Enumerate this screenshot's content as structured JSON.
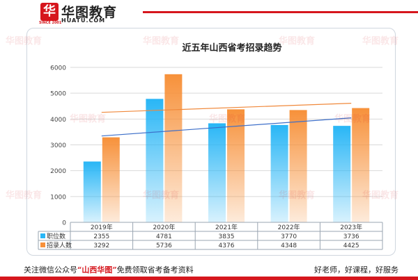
{
  "header": {
    "logo_mark": "华",
    "logo_name": "华图教育",
    "logo_url": "HUATU.COM",
    "logo_since": "SINCE 2001"
  },
  "watermark_text": "华图教育",
  "footer": {
    "left_prefix": "关注微信公众号",
    "left_highlight": "“山西华图”",
    "left_suffix": "免费领取省考备考资料",
    "right": "好老师，好课程，好服务"
  },
  "chart_data": {
    "type": "bar",
    "title": "近五年山西省考招录趋势",
    "categories": [
      "2019年",
      "2020年",
      "2021年",
      "2022年",
      "2023年"
    ],
    "series": [
      {
        "name": "职位数",
        "values": [
          2355,
          4781,
          3835,
          3770,
          3736
        ],
        "color": "#29b6f6"
      },
      {
        "name": "招录人数",
        "values": [
          3292,
          5736,
          4376,
          4348,
          4425
        ],
        "color": "#f7913a"
      }
    ],
    "trendlines": [
      {
        "series": "职位数",
        "color": "#3d6fc9"
      },
      {
        "series": "招录人数",
        "color": "#f0883a"
      }
    ],
    "ylim": [
      0,
      6000
    ],
    "yticks": [
      0,
      1000,
      2000,
      3000,
      4000,
      5000,
      6000
    ],
    "grid": true,
    "data_table": true
  }
}
